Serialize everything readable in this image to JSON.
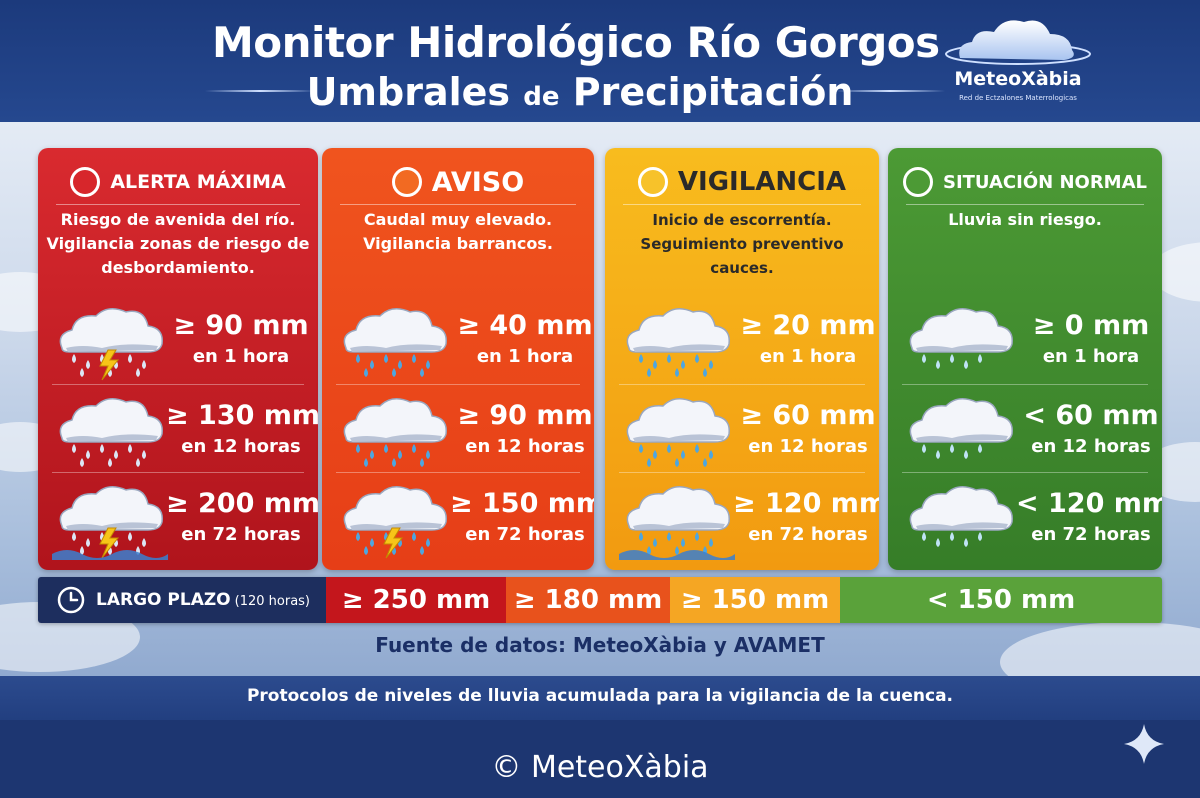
{
  "header": {
    "title_line1": "Monitor Hidrológico Río Gorgos",
    "title_line2_a": "Umbrales ",
    "title_line2_b": "de",
    "title_line2_c": " Precipitación",
    "logo_name": "MeteoXàbia",
    "logo_sub": "Red de Ectzalones Materrologicas"
  },
  "levels": [
    {
      "title": "ALERTA MÁXIMA",
      "desc": [
        "Riesgo de avenida del río.",
        "Vigilancia zonas de riesgo de",
        "desbordamiento."
      ],
      "color_top": "#d92a2f",
      "color_bottom": "#b0141c",
      "title_color": "#ffffff",
      "circle_color": "#d7262b",
      "rows": [
        {
          "value": "≥ 90 mm",
          "period": "en 1 hora",
          "icon": "storm-cloud-icon"
        },
        {
          "value": "≥ 130 mm",
          "period": "en 12 horas",
          "icon": "rain-cloud-icon"
        },
        {
          "value": "≥ 200 mm",
          "period": "en 72 horas",
          "icon": "storm-cloud-flood-icon"
        }
      ]
    },
    {
      "title": "AVISO",
      "desc": [
        "Caudal muy elevado.",
        "Vigilancia barrancos."
      ],
      "color_top": "#f0541e",
      "color_bottom": "#e63e17",
      "title_color": "#ffffff",
      "circle_color": "#f26a22",
      "rows": [
        {
          "value": "≥ 40 mm",
          "period": "en 1 hora",
          "icon": "rain-cloud-icon"
        },
        {
          "value": "≥ 90 mm",
          "period": "en 12 horas",
          "icon": "rain-cloud-icon"
        },
        {
          "value": "≥ 150 mm",
          "period": "en 72 horas",
          "icon": "storm-cloud-icon"
        }
      ]
    },
    {
      "title": "VIGILANCIA",
      "desc": [
        "Inicio de escorrentía.",
        "Seguimiento preventivo cauces."
      ],
      "color_top": "#f8bc1e",
      "color_bottom": "#f29a10",
      "title_color": "#2a2a2a",
      "circle_color": "#f7c22a",
      "rows": [
        {
          "value": "≥ 20 mm",
          "period": "en 1 hora",
          "icon": "rain-cloud-icon"
        },
        {
          "value": "≥ 60 mm",
          "period": "en 12 horas",
          "icon": "rain-cloud-icon"
        },
        {
          "value": "≥ 120 mm",
          "period": "en 72 horas",
          "icon": "rain-cloud-wave-icon"
        }
      ]
    },
    {
      "title": "SITUACIÓN NORMAL",
      "desc": [
        "Lluvia sin riesgo."
      ],
      "color_top": "#4c9a35",
      "color_bottom": "#367d28",
      "title_color": "#ffffff",
      "circle_color": "#4c9a35",
      "rows": [
        {
          "value": "≥ 0 mm",
          "period": "en 1 hora",
          "icon": "light-rain-cloud-icon"
        },
        {
          "value": "< 60 mm",
          "period": "en 12 horas",
          "icon": "light-rain-cloud-icon"
        },
        {
          "value": "< 120 mm",
          "period": "en 72 horas",
          "icon": "light-rain-cloud-icon"
        }
      ]
    }
  ],
  "long_term": {
    "label": "LARGO PLAZO",
    "label_sub": "(120 horas)",
    "icon": "clock-icon",
    "values": [
      {
        "text": "≥ 250 mm",
        "color": "#c4161c"
      },
      {
        "text": "≥ 180 mm",
        "color": "#e8521c"
      },
      {
        "text": "≥ 150 mm",
        "color": "#f5a623"
      },
      {
        "text": "< 150 mm",
        "color": "#5aa23a"
      }
    ]
  },
  "footer": {
    "source": "Fuente de datos: MeteoXàbia y AVAMET",
    "note": "Protocolos de niveles de lluvia acumulada para la vigilancia de la cuenca.",
    "copyright": "© MeteoXàbia",
    "sparkle_icon": "sparkle-icon"
  }
}
